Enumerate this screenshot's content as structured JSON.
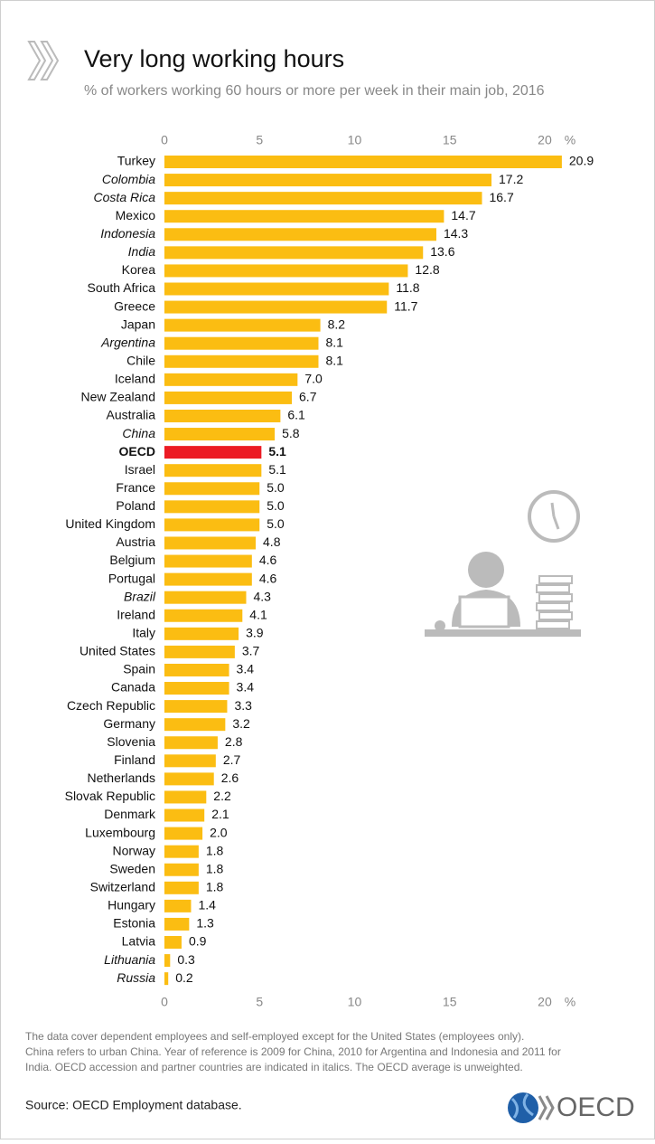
{
  "chart_data": {
    "type": "bar",
    "orientation": "horizontal",
    "title": "Very long working hours",
    "subtitle": "% of workers working 60 hours or more per week in their main job, 2016",
    "x_unit": "%",
    "categories": [
      "Turkey",
      "Colombia",
      "Costa Rica",
      "Mexico",
      "Indonesia",
      "India",
      "Korea",
      "South Africa",
      "Greece",
      "Japan",
      "Argentina",
      "Chile",
      "Iceland",
      "New Zealand",
      "Australia",
      "China",
      "OECD",
      "Israel",
      "France",
      "Poland",
      "United Kingdom",
      "Austria",
      "Belgium",
      "Portugal",
      "Brazil",
      "Ireland",
      "Italy",
      "United States",
      "Spain",
      "Canada",
      "Czech Republic",
      "Germany",
      "Slovenia",
      "Finland",
      "Netherlands",
      "Slovak Republic",
      "Denmark",
      "Luxembourg",
      "Norway",
      "Sweden",
      "Switzerland",
      "Hungary",
      "Estonia",
      "Latvia",
      "Lithuania",
      "Russia"
    ],
    "values": [
      20.9,
      17.2,
      16.7,
      14.7,
      14.3,
      13.6,
      12.8,
      11.8,
      11.7,
      8.2,
      8.1,
      8.1,
      7.0,
      6.7,
      6.1,
      5.8,
      5.1,
      5.1,
      5.0,
      5.0,
      5.0,
      4.8,
      4.6,
      4.6,
      4.3,
      4.1,
      3.9,
      3.7,
      3.4,
      3.4,
      3.3,
      3.2,
      2.8,
      2.7,
      2.6,
      2.2,
      2.1,
      2.0,
      1.8,
      1.8,
      1.8,
      1.4,
      1.3,
      0.9,
      0.3,
      0.2
    ],
    "value_labels": [
      "20.9",
      "17.2",
      "16.7",
      "14.7",
      "14.3",
      "13.6",
      "12.8",
      "11.8",
      "11.7",
      "8.2",
      "8.1",
      "8.1",
      "7.0",
      "6.7",
      "6.1",
      "5.8",
      "5.1",
      "5.1",
      "5.0",
      "5.0",
      "5.0",
      "4.8",
      "4.6",
      "4.6",
      "4.3",
      "4.1",
      "3.9",
      "3.7",
      "3.4",
      "3.4",
      "3.3",
      "3.2",
      "2.8",
      "2.7",
      "2.6",
      "2.2",
      "2.1",
      "2.0",
      "1.8",
      "1.8",
      "1.8",
      "1.4",
      "1.3",
      "0.9",
      "0.3",
      "0.2"
    ],
    "color": "#fbbd12",
    "highlight": {
      "category": "OECD",
      "color": "#ec1b24"
    },
    "italic_categories": [
      "Colombia",
      "Costa Rica",
      "Indonesia",
      "India",
      "Argentina",
      "China",
      "Brazil",
      "Lithuania",
      "Russia"
    ],
    "xlim": [
      0,
      21
    ],
    "xticks": [
      0,
      5,
      10,
      15,
      20
    ]
  },
  "notes": [
    "The data cover dependent employees and self-employed except for the United States (employees only).",
    "China refers to urban China. Year of reference is 2009 for China, 2010 for Argentina and Indonesia and 2011 for",
    "India. OECD accession and partner countries are indicated in italics. The OECD average is unweighted."
  ],
  "source": "Source: OECD Employment database.",
  "logo_text": "OECD"
}
